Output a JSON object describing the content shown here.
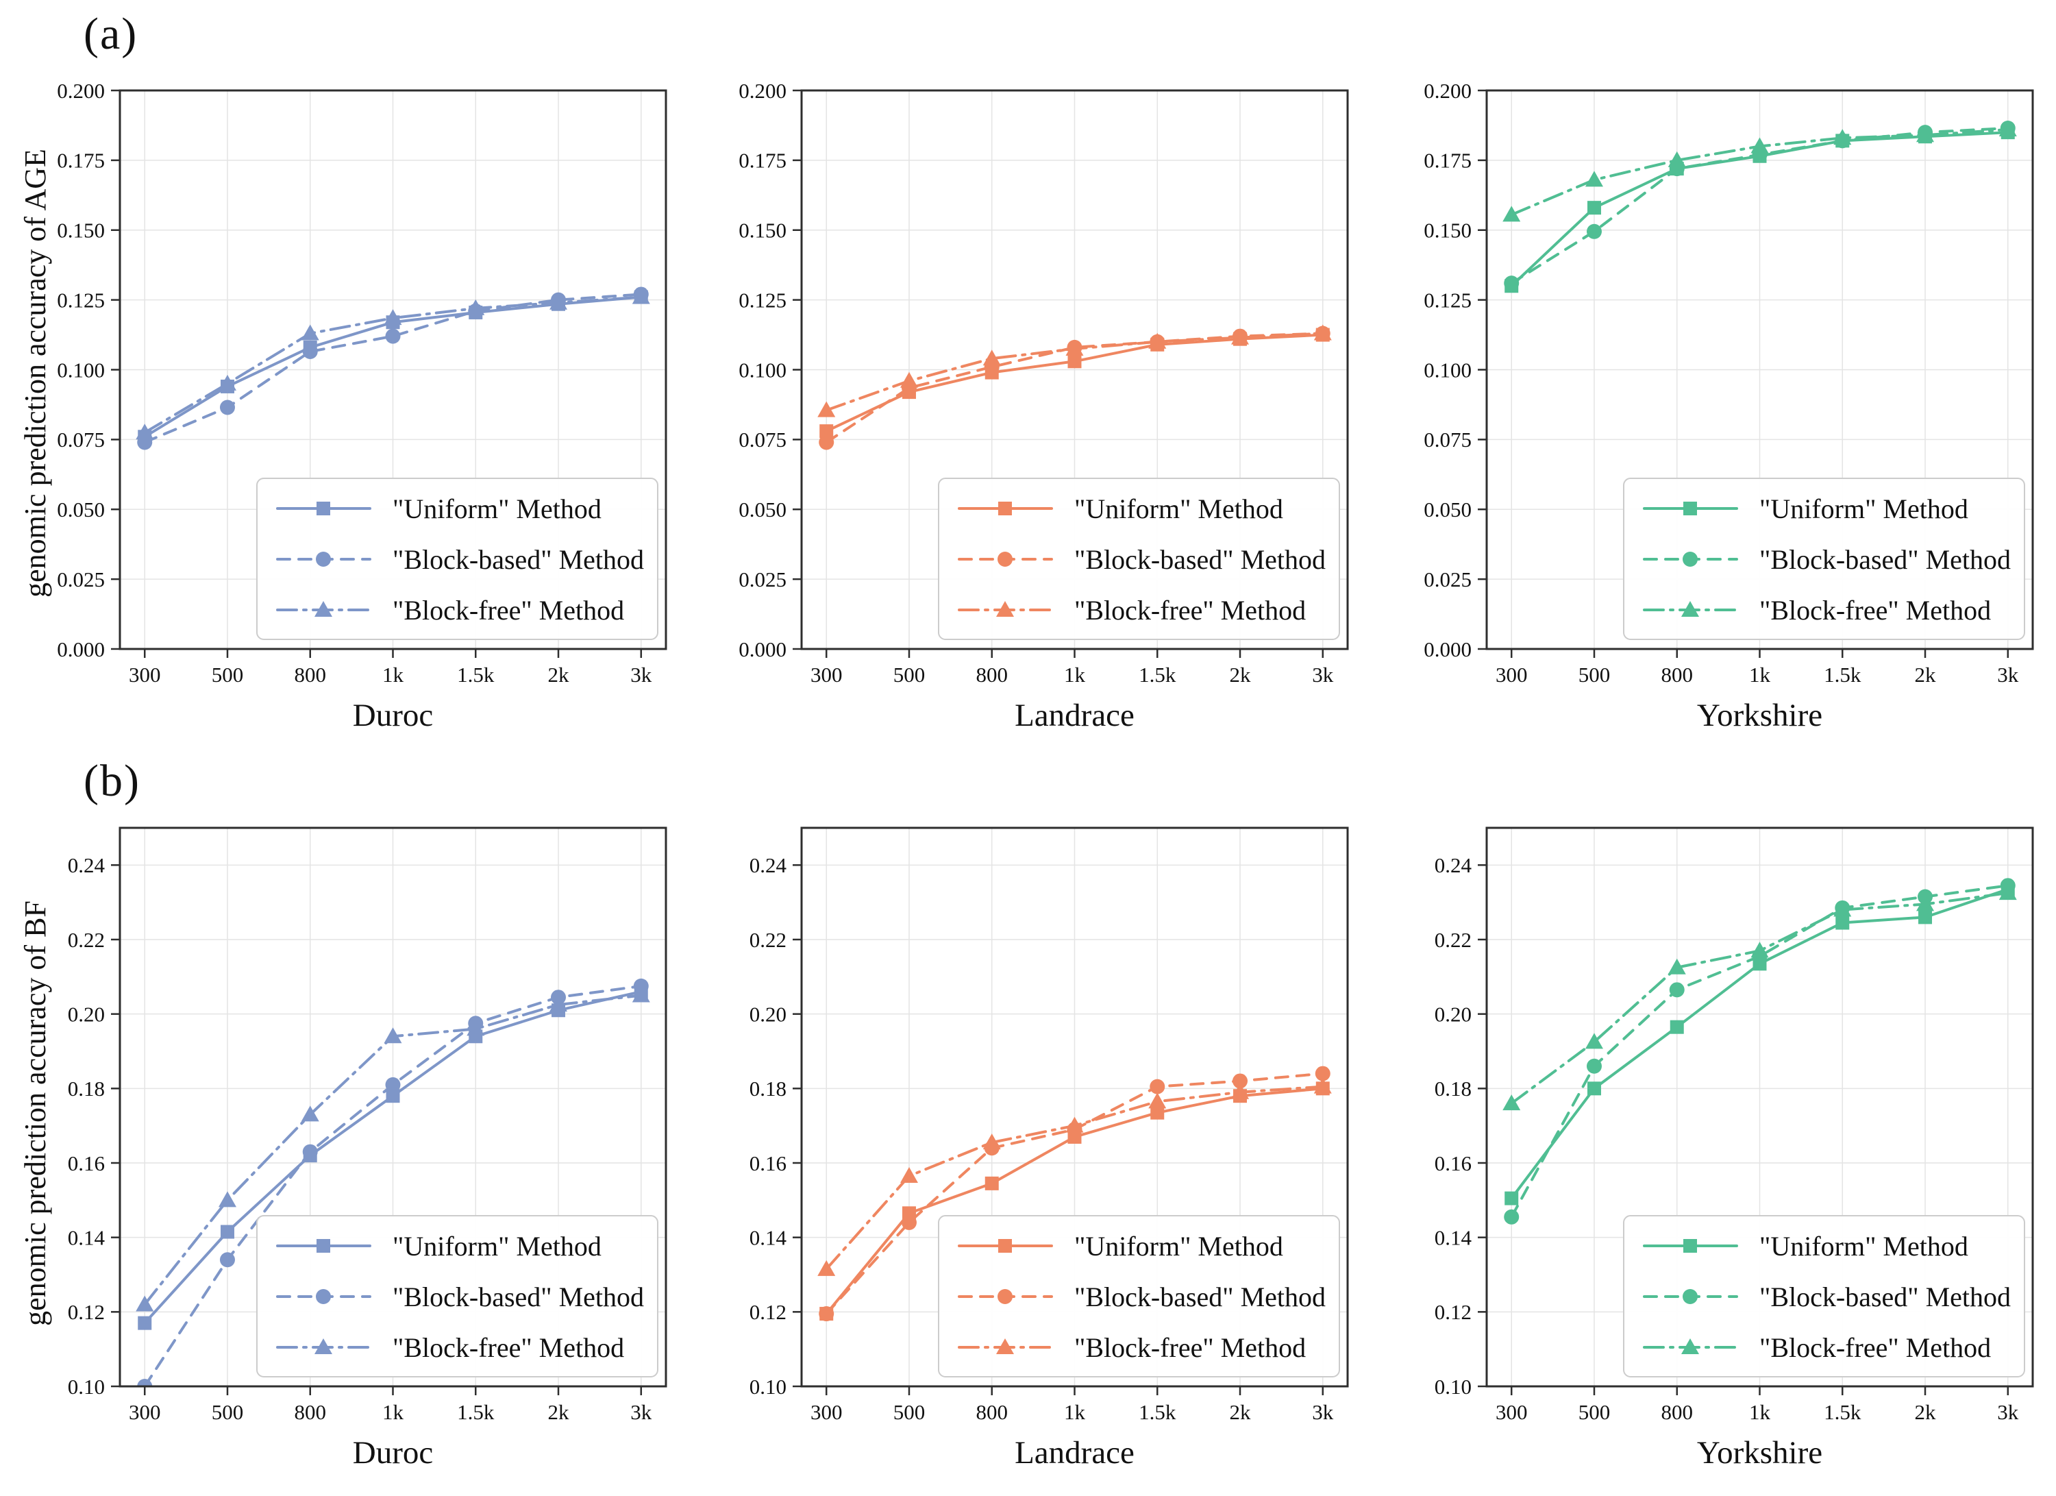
{
  "panels": {
    "a": "(a)",
    "b": "(b)"
  },
  "x_axis": {
    "categories": [
      "300",
      "500",
      "800",
      "1k",
      "1.5k",
      "2k",
      "3k"
    ]
  },
  "legend": {
    "labels": [
      "\"Uniform\" Method",
      "\"Block-based\" Method",
      "\"Block-free\" Method"
    ],
    "position": "lower right"
  },
  "colors": {
    "duroc": "#7E96C8",
    "landrace": "#EF8660",
    "yorkshire": "#50BE93"
  },
  "chart_data": [
    {
      "panel": "a",
      "type": "line",
      "xlabel": "Duroc",
      "ylabel": "genomic prediction accuracy of AGE",
      "color": "#7E96C8",
      "ylim": [
        0.0,
        0.2
      ],
      "ytick_step": 0.025,
      "ytick_decimals": 3,
      "grid": true,
      "legend_position": "lower right",
      "categories": [
        "300",
        "500",
        "800",
        "1k",
        "1.5k",
        "2k",
        "3k"
      ],
      "series": [
        {
          "name": "\"Uniform\" Method",
          "line": "solid",
          "marker": "square",
          "values": [
            0.076,
            0.094,
            0.108,
            0.117,
            0.1205,
            0.1235,
            0.126
          ]
        },
        {
          "name": "\"Block-based\" Method",
          "line": "dashed",
          "marker": "circle",
          "values": [
            0.074,
            0.0865,
            0.1065,
            0.112,
            0.121,
            0.125,
            0.127
          ]
        },
        {
          "name": "\"Block-free\" Method",
          "line": "dashdot",
          "marker": "triangle",
          "values": [
            0.0775,
            0.095,
            0.113,
            0.1185,
            0.122,
            0.124,
            0.126
          ]
        }
      ]
    },
    {
      "panel": "a",
      "type": "line",
      "xlabel": "Landrace",
      "ylabel": "",
      "color": "#EF8660",
      "ylim": [
        0.0,
        0.2
      ],
      "ytick_step": 0.025,
      "ytick_decimals": 3,
      "grid": true,
      "legend_position": "lower right",
      "categories": [
        "300",
        "500",
        "800",
        "1k",
        "1.5k",
        "2k",
        "3k"
      ],
      "series": [
        {
          "name": "\"Uniform\" Method",
          "line": "solid",
          "marker": "square",
          "values": [
            0.078,
            0.092,
            0.099,
            0.103,
            0.109,
            0.111,
            0.1125
          ]
        },
        {
          "name": "\"Block-based\" Method",
          "line": "dashed",
          "marker": "circle",
          "values": [
            0.074,
            0.0935,
            0.101,
            0.108,
            0.11,
            0.112,
            0.113
          ]
        },
        {
          "name": "\"Block-free\" Method",
          "line": "dashdot",
          "marker": "triangle",
          "values": [
            0.0855,
            0.096,
            0.104,
            0.1075,
            0.11,
            0.1115,
            0.113
          ]
        }
      ]
    },
    {
      "panel": "a",
      "type": "line",
      "xlabel": "Yorkshire",
      "ylabel": "",
      "color": "#50BE93",
      "ylim": [
        0.0,
        0.2
      ],
      "ytick_step": 0.025,
      "ytick_decimals": 3,
      "grid": true,
      "legend_position": "lower right",
      "categories": [
        "300",
        "500",
        "800",
        "1k",
        "1.5k",
        "2k",
        "3k"
      ],
      "series": [
        {
          "name": "\"Uniform\" Method",
          "line": "solid",
          "marker": "square",
          "values": [
            0.13,
            0.158,
            0.172,
            0.1765,
            0.182,
            0.1835,
            0.185
          ]
        },
        {
          "name": "\"Block-based\" Method",
          "line": "dashed",
          "marker": "circle",
          "values": [
            0.131,
            0.1495,
            0.172,
            0.177,
            0.182,
            0.185,
            0.1865
          ]
        },
        {
          "name": "\"Block-free\" Method",
          "line": "dashdot",
          "marker": "triangle",
          "values": [
            0.1555,
            0.168,
            0.175,
            0.18,
            0.183,
            0.184,
            0.186
          ]
        }
      ]
    },
    {
      "panel": "b",
      "type": "line",
      "xlabel": "Duroc",
      "ylabel": "genomic prediction accuracy of BF",
      "color": "#7E96C8",
      "ylim": [
        0.1,
        0.25
      ],
      "ytick_step": 0.02,
      "ytick_decimals": 2,
      "grid": true,
      "legend_position": "lower right",
      "categories": [
        "300",
        "500",
        "800",
        "1k",
        "1.5k",
        "2k",
        "3k"
      ],
      "series": [
        {
          "name": "\"Uniform\" Method",
          "line": "solid",
          "marker": "square",
          "values": [
            0.117,
            0.1415,
            0.162,
            0.178,
            0.194,
            0.201,
            0.206
          ]
        },
        {
          "name": "\"Block-based\" Method",
          "line": "dashed",
          "marker": "circle",
          "values": [
            0.1,
            0.134,
            0.163,
            0.181,
            0.1975,
            0.2045,
            0.2075
          ]
        },
        {
          "name": "\"Block-free\" Method",
          "line": "dashdot",
          "marker": "triangle",
          "values": [
            0.122,
            0.15,
            0.173,
            0.194,
            0.196,
            0.2025,
            0.205
          ]
        }
      ]
    },
    {
      "panel": "b",
      "type": "line",
      "xlabel": "Landrace",
      "ylabel": "",
      "color": "#EF8660",
      "ylim": [
        0.1,
        0.25
      ],
      "ytick_step": 0.02,
      "ytick_decimals": 2,
      "grid": true,
      "legend_position": "lower right",
      "categories": [
        "300",
        "500",
        "800",
        "1k",
        "1.5k",
        "2k",
        "3k"
      ],
      "series": [
        {
          "name": "\"Uniform\" Method",
          "line": "solid",
          "marker": "square",
          "values": [
            0.1195,
            0.1465,
            0.1545,
            0.167,
            0.1735,
            0.178,
            0.18
          ]
        },
        {
          "name": "\"Block-based\" Method",
          "line": "dashed",
          "marker": "circle",
          "values": [
            0.1195,
            0.144,
            0.164,
            0.169,
            0.1805,
            0.182,
            0.184
          ]
        },
        {
          "name": "\"Block-free\" Method",
          "line": "dashdot",
          "marker": "triangle",
          "values": [
            0.1315,
            0.1565,
            0.1655,
            0.17,
            0.1765,
            0.179,
            0.1805
          ]
        }
      ]
    },
    {
      "panel": "b",
      "type": "line",
      "xlabel": "Yorkshire",
      "ylabel": "",
      "color": "#50BE93",
      "ylim": [
        0.1,
        0.25
      ],
      "ytick_step": 0.02,
      "ytick_decimals": 2,
      "grid": true,
      "legend_position": "lower right",
      "categories": [
        "300",
        "500",
        "800",
        "1k",
        "1.5k",
        "2k",
        "3k"
      ],
      "series": [
        {
          "name": "\"Uniform\" Method",
          "line": "solid",
          "marker": "square",
          "values": [
            0.1505,
            0.18,
            0.1965,
            0.2135,
            0.2245,
            0.226,
            0.2335
          ]
        },
        {
          "name": "\"Block-based\" Method",
          "line": "dashed",
          "marker": "circle",
          "values": [
            0.1455,
            0.186,
            0.2065,
            0.2155,
            0.2285,
            0.2315,
            0.2345
          ]
        },
        {
          "name": "\"Block-free\" Method",
          "line": "dashdot",
          "marker": "triangle",
          "values": [
            0.176,
            0.1925,
            0.2125,
            0.217,
            0.228,
            0.2295,
            0.2325
          ]
        }
      ]
    }
  ]
}
